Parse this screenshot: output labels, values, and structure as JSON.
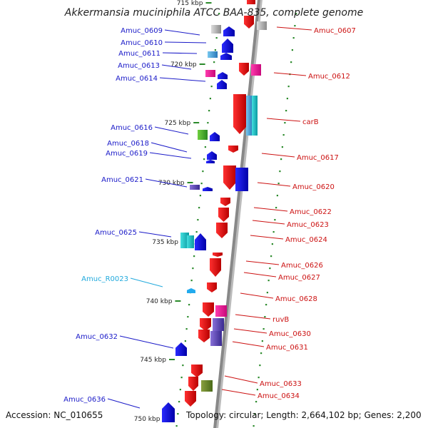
{
  "title": "Akkermansia muciniphila ATCC BAA-835, complete genome",
  "footer": {
    "accession": "Accession: NC_010655",
    "stats": "Topology: circular; Length: 2,664,102 bp; Genes: 2,200"
  },
  "colors": {
    "backbone": "#888888",
    "tick": "#2a8a2a",
    "left_label": "#1a1ac8",
    "right_label": "#cc1111",
    "rna_label": "#22aadd"
  },
  "scale_labels": [
    "715 kbp",
    "720 kbp",
    "725 kbp",
    "730 kbp",
    "735 kbp",
    "740 kbp",
    "745 kbp",
    "750 kbp"
  ],
  "left_genes": [
    {
      "label": "Amuc_0609"
    },
    {
      "label": "Amuc_0610"
    },
    {
      "label": "Amuc_0611"
    },
    {
      "label": "Amuc_0613"
    },
    {
      "label": "Amuc_0614"
    },
    {
      "label": "Amuc_0616"
    },
    {
      "label": "Amuc_0618"
    },
    {
      "label": "Amuc_0619"
    },
    {
      "label": "Amuc_0621"
    },
    {
      "label": "Amuc_0625"
    },
    {
      "label": "Amuc_R0023"
    },
    {
      "label": "Amuc_0632"
    },
    {
      "label": "Amuc_0636"
    }
  ],
  "right_genes": [
    {
      "label": "Amuc_0607"
    },
    {
      "label": "Amuc_0612"
    },
    {
      "label": "carB"
    },
    {
      "label": "Amuc_0617"
    },
    {
      "label": "Amuc_0620"
    },
    {
      "label": "Amuc_0622"
    },
    {
      "label": "Amuc_0623"
    },
    {
      "label": "Amuc_0624"
    },
    {
      "label": "Amuc_0626"
    },
    {
      "label": "Amuc_0627"
    },
    {
      "label": "Amuc_0628"
    },
    {
      "label": "ruvB"
    },
    {
      "label": "Amuc_0630"
    },
    {
      "label": "Amuc_0631"
    },
    {
      "label": "Amuc_0633"
    },
    {
      "label": "Amuc_0634"
    }
  ]
}
